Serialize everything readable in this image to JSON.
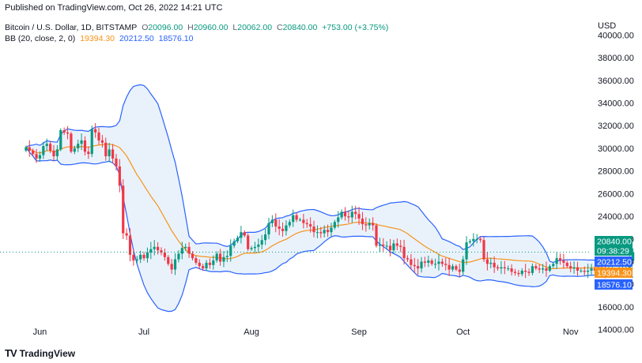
{
  "header": {
    "published": "Published on TradingView.com, Oct 26, 2022 14:21 UTC",
    "symbol": "Bitcoin / U.S. Dollar, 1D, BITSTAMP",
    "ohlc": {
      "o_label": "O",
      "o": "20096.00",
      "h_label": "H",
      "h": "20960.00",
      "l_label": "L",
      "l": "20062.00",
      "c_label": "C",
      "c": "20840.00",
      "change": "+753.00 (+3.75%)"
    },
    "bb": {
      "label": "BB (20, close, 2, 0)",
      "middle": "19394.30",
      "upper": "20212.50",
      "lower": "18576.10"
    }
  },
  "currency": "USD",
  "price_labels": {
    "last": "20840.00",
    "countdown": "09:38:29",
    "upper": "20212.50",
    "middle": "19394.30",
    "lower": "18576.10"
  },
  "footer": {
    "brand": "TradingView",
    "logo": "TV"
  },
  "colors": {
    "up": "#089981",
    "down": "#f23645",
    "basis": "#f7931a",
    "band": "#2962ff",
    "band_fill": "#e3effa",
    "last_price": "#089981"
  },
  "chart_data": {
    "type": "candlestick",
    "title": "Bitcoin / U.S. Dollar, 1D, BITSTAMP",
    "ylabel": "USD",
    "y_ticks": [
      14000,
      16000,
      18000,
      20000,
      22000,
      24000,
      26000,
      28000,
      30000,
      32000,
      34000,
      36000,
      38000,
      40000
    ],
    "y_tick_labels": [
      "14000.00",
      "16000.00",
      "18000.00",
      "20000.00",
      "22000.00",
      "24000.00",
      "26000.00",
      "28000.00",
      "30000.00",
      "32000.00",
      "34000.00",
      "36000.00",
      "38000.00",
      "40000.00"
    ],
    "ylim": [
      13000,
      41700
    ],
    "x_ticks": [
      {
        "label": "Jun",
        "day": 30
      },
      {
        "label": "Jul",
        "day": 60
      },
      {
        "label": "Aug",
        "day": 91
      },
      {
        "label": "Sep",
        "day": 122
      },
      {
        "label": "Oct",
        "day": 152
      },
      {
        "label": "Nov",
        "day": 183
      }
    ],
    "xlim": [
      18.5,
      189
    ],
    "grid": false,
    "indicator": "Bollinger Bands (20, close, 2, 0)",
    "close": [
      30100,
      29800,
      29500,
      29100,
      29400,
      30200,
      30400,
      29800,
      29300,
      29900,
      31600,
      31400,
      31300,
      29700,
      30000,
      30400,
      30700,
      29700,
      29500,
      31700,
      31400,
      30700,
      30500,
      29300,
      29900,
      29100,
      28400,
      26700,
      22500,
      22300,
      20600,
      20100,
      20200,
      20600,
      20300,
      20800,
      21100,
      21300,
      21000,
      20800,
      20400,
      19800,
      19300,
      20200,
      20700,
      21200,
      21300,
      20700,
      20300,
      19900,
      19600,
      19400,
      19900,
      19700,
      20100,
      20700,
      20000,
      20400,
      20500,
      21400,
      21800,
      22100,
      22600,
      22300,
      21100,
      21200,
      21300,
      21500,
      21900,
      22400,
      23400,
      23700,
      23100,
      22900,
      22700,
      23200,
      23500,
      24100,
      23700,
      23700,
      23400,
      23300,
      23100,
      22600,
      22600,
      22500,
      22800,
      22600,
      23000,
      23500,
      23900,
      24400,
      24000,
      23900,
      24400,
      24200,
      23800,
      23300,
      23200,
      23400,
      23200,
      21400,
      21500,
      21400,
      21400,
      21000,
      21600,
      21400,
      21300,
      20300,
      20200,
      19700,
      19600,
      19400,
      20000,
      19900,
      20100,
      19800,
      19800,
      20000,
      19800,
      19700,
      19300,
      19600,
      19300,
      19100,
      20200,
      21700,
      21800,
      22000,
      22000,
      21900,
      20200,
      19800,
      19900,
      19500,
      19400,
      19500,
      19400,
      19400,
      19100,
      19000,
      18900,
      19200,
      19100,
      19000,
      19600,
      19400,
      19300,
      19400,
      19200,
      19600,
      19800,
      20300,
      20100,
      19900,
      19600,
      19400,
      19500,
      19200,
      19200,
      19100,
      19200,
      19400,
      19200,
      19300,
      19100,
      19000,
      19200,
      19300,
      19300,
      19300,
      19400,
      19400,
      20100,
      20840
    ]
  }
}
